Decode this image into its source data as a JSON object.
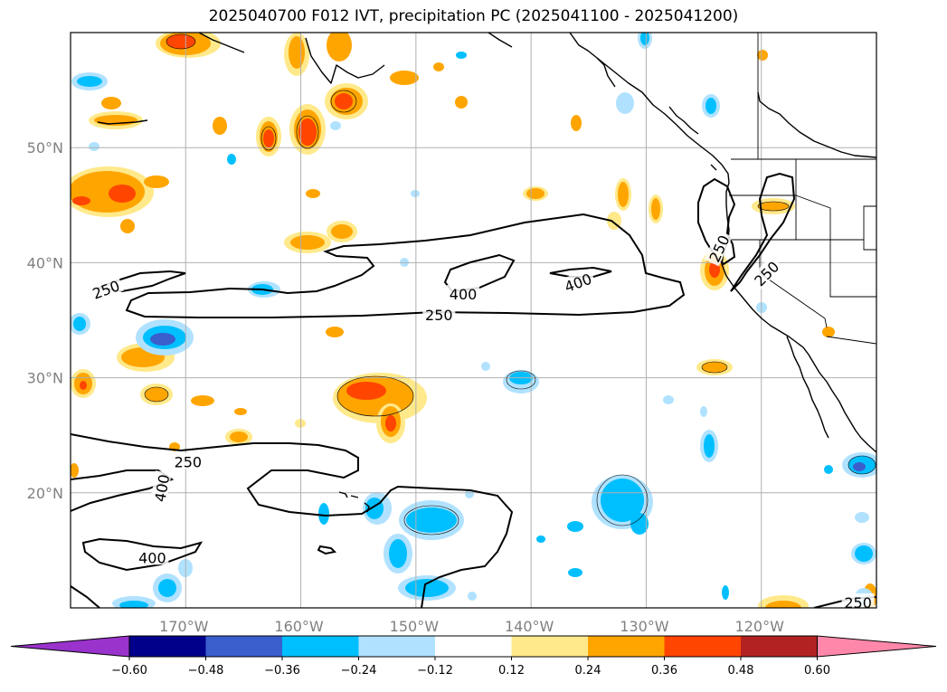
{
  "title": "2025040700 F012 IVT, precipitation PC (2025041100 - 2025041200)",
  "map": {
    "lon_range": [
      -180,
      -110
    ],
    "lat_range": [
      10,
      60
    ],
    "lat_ticks": [
      {
        "value": 50,
        "label": "50°N"
      },
      {
        "value": 40,
        "label": "40°N"
      },
      {
        "value": 30,
        "label": "30°N"
      },
      {
        "value": 20,
        "label": "20°N"
      }
    ],
    "lon_ticks": [
      {
        "value": -170,
        "label": "170°W"
      },
      {
        "value": -160,
        "label": "160°W"
      },
      {
        "value": -150,
        "label": "150°W"
      },
      {
        "value": -140,
        "label": "140°W"
      },
      {
        "value": -130,
        "label": "130°W"
      },
      {
        "value": -120,
        "label": "120°W"
      }
    ],
    "gridlines": true,
    "ivt_contour_labels": [
      {
        "text": "250",
        "lon": -176.9,
        "lat": 37.6,
        "rot": -20
      },
      {
        "text": "400",
        "lon": -145.9,
        "lat": 37.2,
        "rot": 0
      },
      {
        "text": "250",
        "lon": -148.0,
        "lat": 35.4,
        "rot": 0
      },
      {
        "text": "400",
        "lon": -135.9,
        "lat": 38.2,
        "rot": -20
      },
      {
        "text": "250",
        "lon": -123.6,
        "lat": 41.2,
        "rot": -65
      },
      {
        "text": "250",
        "lon": -119.5,
        "lat": 39.0,
        "rot": -45
      },
      {
        "text": "250",
        "lon": -169.8,
        "lat": 22.6,
        "rot": 0
      },
      {
        "text": "400",
        "lon": -172.0,
        "lat": 20.4,
        "rot": -80
      },
      {
        "text": "400",
        "lon": -172.9,
        "lat": 14.3,
        "rot": 0
      },
      {
        "text": "250",
        "lon": -111.6,
        "lat": 10.4,
        "rot": 0
      }
    ]
  },
  "colorbar": {
    "colors": [
      "#9933cc",
      "#00008b",
      "#3a5fcd",
      "#00bfff",
      "#b0e2ff",
      "#ffffff",
      "#ffe98a",
      "#ffa500",
      "#ff4500",
      "#b22222",
      "#ff88aa"
    ],
    "tick_labels": [
      "−0.60",
      "−0.48",
      "−0.36",
      "−0.24",
      "−0.12",
      "0.12",
      "0.24",
      "0.36",
      "0.48",
      "0.60"
    ]
  }
}
